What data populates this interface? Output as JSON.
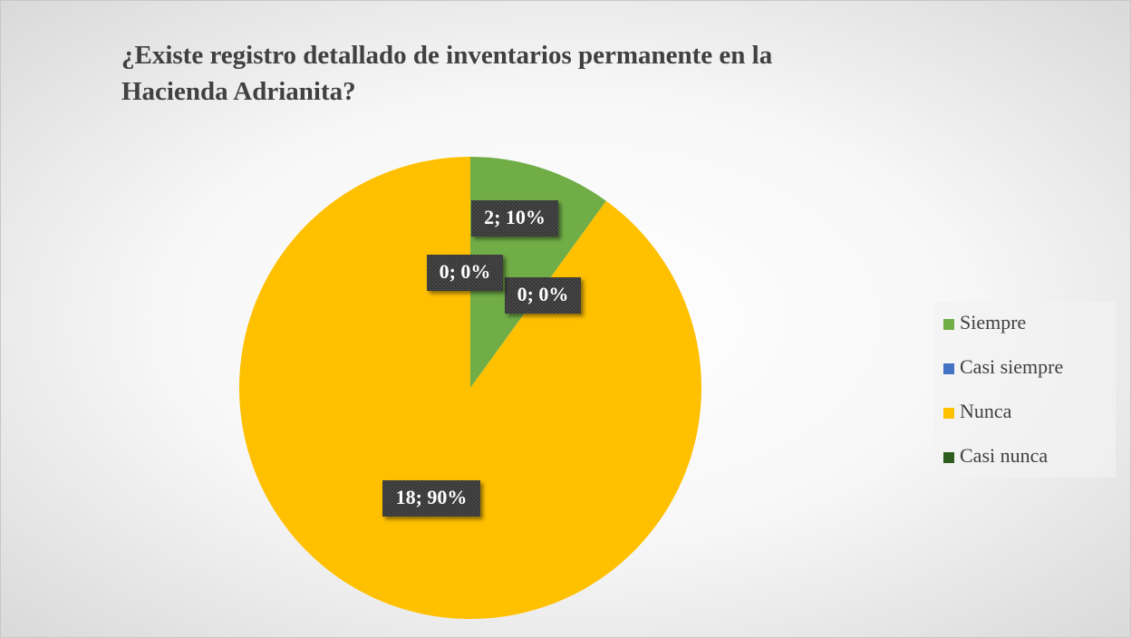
{
  "chart_data": {
    "type": "pie",
    "title": "¿Existe registro detallado de inventarios permanente en la Hacienda Adrianita?",
    "categories": [
      "Siempre",
      "Casi siempre",
      "Nunca",
      "Casi nunca"
    ],
    "values": [
      2,
      0,
      18,
      0
    ],
    "value_labels": [
      "2; 10%",
      "0; 0%",
      "18; 90%",
      "0; 0%"
    ],
    "colors": [
      "#70ad47",
      "#4472c4",
      "#ffc000",
      "#2e5e1f"
    ],
    "legend": "right"
  }
}
